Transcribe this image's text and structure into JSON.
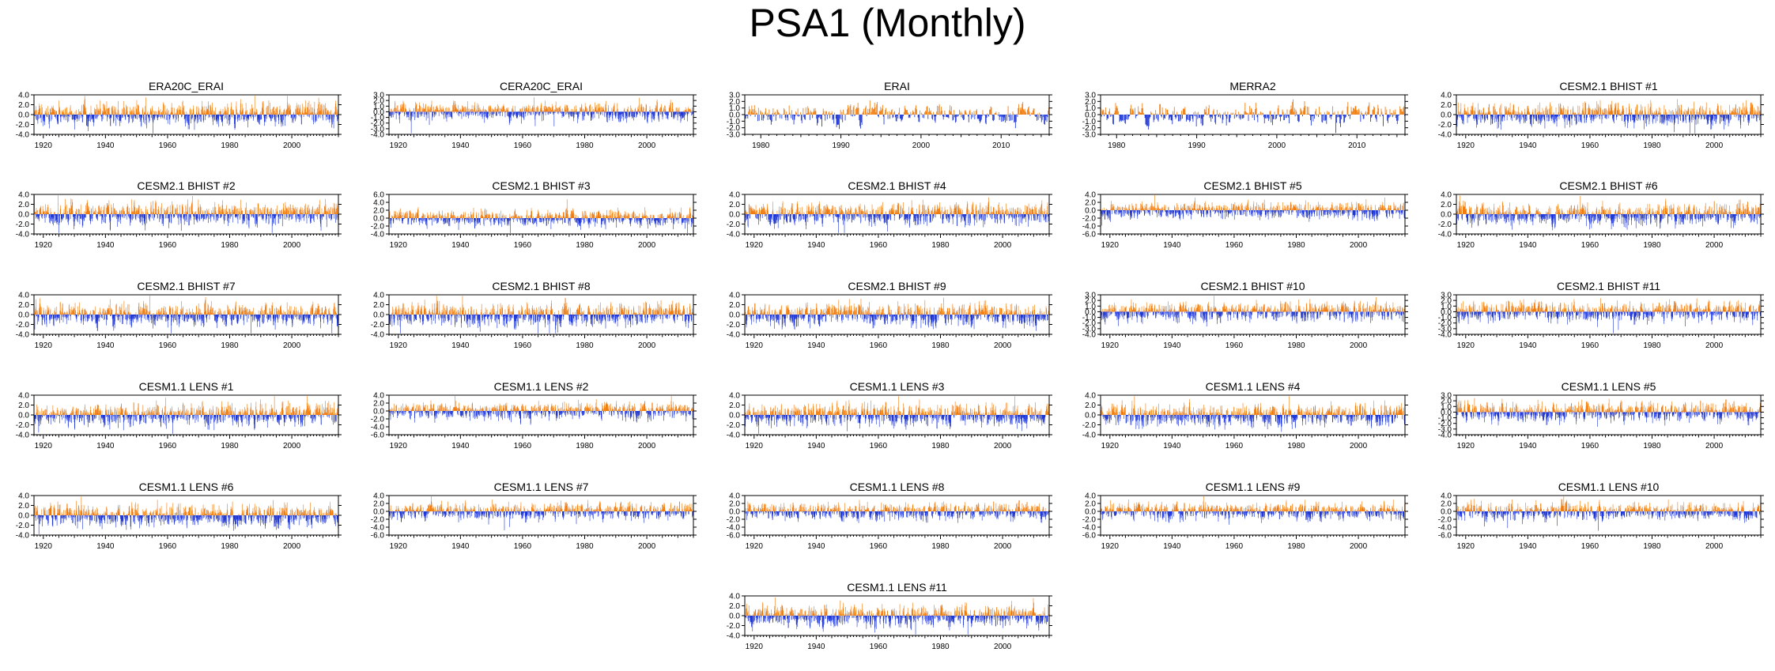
{
  "title": "PSA1 (Monthly)",
  "colors": {
    "positive": "#f07b0c",
    "negative": "#1b33d6",
    "axis": "#000000"
  },
  "chart_data": [
    {
      "type": "bar",
      "title": "ERA20C_ERAI",
      "x_range": [
        1917,
        2015
      ],
      "xticks": [
        1920,
        1940,
        1960,
        1980,
        2000
      ],
      "ylim": [
        -4,
        4
      ],
      "yticks": [
        "-4.0",
        "-2.0",
        "0.0",
        "2.0",
        "4.0"
      ],
      "seed": 1,
      "amp": 1.7
    },
    {
      "type": "bar",
      "title": "CERA20C_ERAI",
      "x_range": [
        1917,
        2015
      ],
      "xticks": [
        1920,
        1940,
        1960,
        1980,
        2000
      ],
      "ylim": [
        -4,
        3
      ],
      "yticks": [
        "-4.0",
        "-3.0",
        "-2.0",
        "-1.0",
        "0.0",
        "1.0",
        "2.0",
        "3.0"
      ],
      "seed": 2,
      "amp": 1.2
    },
    {
      "type": "bar",
      "title": "ERAI",
      "x_range": [
        1978,
        2016
      ],
      "xticks": [
        1980,
        1990,
        2000,
        2010
      ],
      "ylim": [
        -3,
        3
      ],
      "yticks": [
        "-3.0",
        "-2.0",
        "-1.0",
        "0.0",
        "1.0",
        "2.0",
        "3.0"
      ],
      "seed": 3,
      "amp": 1.2
    },
    {
      "type": "bar",
      "title": "MERRA2",
      "x_range": [
        1978,
        2016
      ],
      "xticks": [
        1980,
        1990,
        2000,
        2010
      ],
      "ylim": [
        -3,
        3
      ],
      "yticks": [
        "-3.0",
        "-2.0",
        "-1.0",
        "0.0",
        "1.0",
        "2.0",
        "3.0"
      ],
      "seed": 4,
      "amp": 1.2
    },
    {
      "type": "bar",
      "title": "CESM2.1 BHIST #1",
      "x_range": [
        1917,
        2015
      ],
      "xticks": [
        1920,
        1940,
        1960,
        1980,
        2000
      ],
      "ylim": [
        -4,
        4
      ],
      "yticks": [
        "-4.0",
        "-2.0",
        "0.0",
        "2.0",
        "4.0"
      ],
      "seed": 5,
      "amp": 1.7
    },
    {
      "type": "bar",
      "title": "CESM2.1 BHIST #2",
      "x_range": [
        1917,
        2015
      ],
      "xticks": [
        1920,
        1940,
        1960,
        1980,
        2000
      ],
      "ylim": [
        -4,
        4
      ],
      "yticks": [
        "-4.0",
        "-2.0",
        "0.0",
        "2.0",
        "4.0"
      ],
      "seed": 6,
      "amp": 1.7
    },
    {
      "type": "bar",
      "title": "CESM2.1 BHIST #3",
      "x_range": [
        1917,
        2015
      ],
      "xticks": [
        1920,
        1940,
        1960,
        1980,
        2000
      ],
      "ylim": [
        -4,
        6
      ],
      "yticks": [
        "-4.0",
        "-2.0",
        "0.0",
        "2.0",
        "4.0",
        "6.0"
      ],
      "seed": 7,
      "amp": 1.6
    },
    {
      "type": "bar",
      "title": "CESM2.1 BHIST #4",
      "x_range": [
        1917,
        2015
      ],
      "xticks": [
        1920,
        1940,
        1960,
        1980,
        2000
      ],
      "ylim": [
        -4,
        4
      ],
      "yticks": [
        "-4.0",
        "-2.0",
        "0.0",
        "2.0",
        "4.0"
      ],
      "seed": 8,
      "amp": 1.7
    },
    {
      "type": "bar",
      "title": "CESM2.1 BHIST #5",
      "x_range": [
        1917,
        2015
      ],
      "xticks": [
        1920,
        1940,
        1960,
        1980,
        2000
      ],
      "ylim": [
        -6,
        4
      ],
      "yticks": [
        "-6.0",
        "-4.0",
        "-2.0",
        "0.0",
        "2.0",
        "4.0"
      ],
      "seed": 9,
      "amp": 1.6
    },
    {
      "type": "bar",
      "title": "CESM2.1 BHIST #6",
      "x_range": [
        1917,
        2015
      ],
      "xticks": [
        1920,
        1940,
        1960,
        1980,
        2000
      ],
      "ylim": [
        -4,
        4
      ],
      "yticks": [
        "-4.0",
        "-2.0",
        "0.0",
        "2.0",
        "4.0"
      ],
      "seed": 10,
      "amp": 1.7
    },
    {
      "type": "bar",
      "title": "CESM2.1 BHIST #7",
      "x_range": [
        1917,
        2015
      ],
      "xticks": [
        1920,
        1940,
        1960,
        1980,
        2000
      ],
      "ylim": [
        -4,
        4
      ],
      "yticks": [
        "-4.0",
        "-2.0",
        "0.0",
        "2.0",
        "4.0"
      ],
      "seed": 11,
      "amp": 1.7
    },
    {
      "type": "bar",
      "title": "CESM2.1 BHIST #8",
      "x_range": [
        1917,
        2015
      ],
      "xticks": [
        1920,
        1940,
        1960,
        1980,
        2000
      ],
      "ylim": [
        -4,
        4
      ],
      "yticks": [
        "-4.0",
        "-2.0",
        "0.0",
        "2.0",
        "4.0"
      ],
      "seed": 12,
      "amp": 1.7
    },
    {
      "type": "bar",
      "title": "CESM2.1 BHIST #9",
      "x_range": [
        1917,
        2015
      ],
      "xticks": [
        1920,
        1940,
        1960,
        1980,
        2000
      ],
      "ylim": [
        -4,
        4
      ],
      "yticks": [
        "-4.0",
        "-2.0",
        "0.0",
        "2.0",
        "4.0"
      ],
      "seed": 13,
      "amp": 1.7
    },
    {
      "type": "bar",
      "title": "CESM2.1 BHIST #10",
      "x_range": [
        1917,
        2015
      ],
      "xticks": [
        1920,
        1940,
        1960,
        1980,
        2000
      ],
      "ylim": [
        -4,
        3
      ],
      "yticks": [
        "-4.0",
        "-3.0",
        "-2.0",
        "-1.0",
        "0.0",
        "1.0",
        "2.0",
        "3.0"
      ],
      "seed": 14,
      "amp": 1.3
    },
    {
      "type": "bar",
      "title": "CESM2.1 BHIST #11",
      "x_range": [
        1917,
        2015
      ],
      "xticks": [
        1920,
        1940,
        1960,
        1980,
        2000
      ],
      "ylim": [
        -4,
        3
      ],
      "yticks": [
        "-4.0",
        "-3.0",
        "-2.0",
        "-1.0",
        "0.0",
        "1.0",
        "2.0",
        "3.0"
      ],
      "seed": 15,
      "amp": 1.3
    },
    {
      "type": "bar",
      "title": "CESM1.1 LENS #1",
      "x_range": [
        1917,
        2015
      ],
      "xticks": [
        1920,
        1940,
        1960,
        1980,
        2000
      ],
      "ylim": [
        -4,
        4
      ],
      "yticks": [
        "-4.0",
        "-2.0",
        "0.0",
        "2.0",
        "4.0"
      ],
      "seed": 16,
      "amp": 1.7
    },
    {
      "type": "bar",
      "title": "CESM1.1 LENS #2",
      "x_range": [
        1917,
        2015
      ],
      "xticks": [
        1920,
        1940,
        1960,
        1980,
        2000
      ],
      "ylim": [
        -6,
        4
      ],
      "yticks": [
        "-6.0",
        "-4.0",
        "-2.0",
        "0.0",
        "2.0",
        "4.0"
      ],
      "seed": 17,
      "amp": 1.6
    },
    {
      "type": "bar",
      "title": "CESM1.1 LENS #3",
      "x_range": [
        1917,
        2015
      ],
      "xticks": [
        1920,
        1940,
        1960,
        1980,
        2000
      ],
      "ylim": [
        -4,
        4
      ],
      "yticks": [
        "-4.0",
        "-2.0",
        "0.0",
        "2.0",
        "4.0"
      ],
      "seed": 18,
      "amp": 1.7
    },
    {
      "type": "bar",
      "title": "CESM1.1 LENS #4",
      "x_range": [
        1917,
        2015
      ],
      "xticks": [
        1920,
        1940,
        1960,
        1980,
        2000
      ],
      "ylim": [
        -4,
        4
      ],
      "yticks": [
        "-4.0",
        "-2.0",
        "0.0",
        "2.0",
        "4.0"
      ],
      "seed": 19,
      "amp": 1.7
    },
    {
      "type": "bar",
      "title": "CESM1.1 LENS #5",
      "x_range": [
        1917,
        2015
      ],
      "xticks": [
        1920,
        1940,
        1960,
        1980,
        2000
      ],
      "ylim": [
        -4,
        3
      ],
      "yticks": [
        "-4.0",
        "-3.0",
        "-2.0",
        "-1.0",
        "0.0",
        "1.0",
        "2.0",
        "3.0"
      ],
      "seed": 20,
      "amp": 1.3
    },
    {
      "type": "bar",
      "title": "CESM1.1 LENS #6",
      "x_range": [
        1917,
        2015
      ],
      "xticks": [
        1920,
        1940,
        1960,
        1980,
        2000
      ],
      "ylim": [
        -4,
        4
      ],
      "yticks": [
        "-4.0",
        "-2.0",
        "0.0",
        "2.0",
        "4.0"
      ],
      "seed": 21,
      "amp": 1.7
    },
    {
      "type": "bar",
      "title": "CESM1.1 LENS #7",
      "x_range": [
        1917,
        2015
      ],
      "xticks": [
        1920,
        1940,
        1960,
        1980,
        2000
      ],
      "ylim": [
        -6,
        4
      ],
      "yticks": [
        "-6.0",
        "-4.0",
        "-2.0",
        "0.0",
        "2.0",
        "4.0"
      ],
      "seed": 22,
      "amp": 1.6
    },
    {
      "type": "bar",
      "title": "CESM1.1 LENS #8",
      "x_range": [
        1917,
        2015
      ],
      "xticks": [
        1920,
        1940,
        1960,
        1980,
        2000
      ],
      "ylim": [
        -6,
        4
      ],
      "yticks": [
        "-6.0",
        "-4.0",
        "-2.0",
        "0.0",
        "2.0",
        "4.0"
      ],
      "seed": 23,
      "amp": 1.6
    },
    {
      "type": "bar",
      "title": "CESM1.1 LENS #9",
      "x_range": [
        1917,
        2015
      ],
      "xticks": [
        1920,
        1940,
        1960,
        1980,
        2000
      ],
      "ylim": [
        -6,
        4
      ],
      "yticks": [
        "-6.0",
        "-4.0",
        "-2.0",
        "0.0",
        "2.0",
        "4.0"
      ],
      "seed": 24,
      "amp": 1.6
    },
    {
      "type": "bar",
      "title": "CESM1.1 LENS #10",
      "x_range": [
        1917,
        2015
      ],
      "xticks": [
        1920,
        1940,
        1960,
        1980,
        2000
      ],
      "ylim": [
        -6,
        4
      ],
      "yticks": [
        "-6.0",
        "-4.0",
        "-2.0",
        "0.0",
        "2.0",
        "4.0"
      ],
      "seed": 25,
      "amp": 1.6
    },
    {
      "type": "bar",
      "title": "CESM1.1 LENS #11",
      "x_range": [
        1917,
        2015
      ],
      "xticks": [
        1920,
        1940,
        1960,
        1980,
        2000
      ],
      "ylim": [
        -4,
        4
      ],
      "yticks": [
        "-4.0",
        "-2.0",
        "0.0",
        "2.0",
        "4.0"
      ],
      "seed": 26,
      "amp": 1.7
    }
  ]
}
